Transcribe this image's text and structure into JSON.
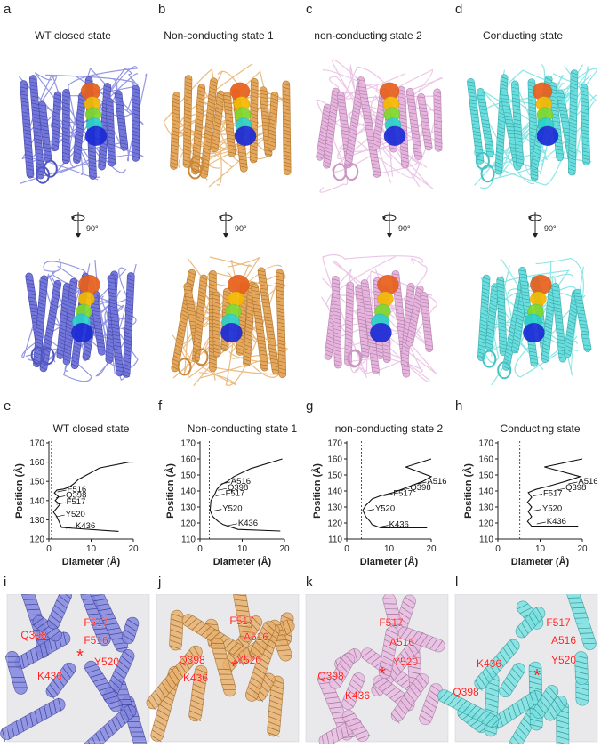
{
  "panel_letters": [
    "a",
    "b",
    "c",
    "d",
    "e",
    "f",
    "g",
    "h",
    "i",
    "j",
    "k",
    "l"
  ],
  "structure_titles": [
    "WT closed state",
    "Non-conducting state 1",
    "non-conducting state 2",
    "Conducting state"
  ],
  "rotation_label": "90°",
  "structure_colors": [
    "#5a5fd6",
    "#e0973f",
    "#e2a7d8",
    "#4fd8d8"
  ],
  "pore_colors": [
    "#e8601c",
    "#f5b800",
    "#7fd82c",
    "#2ad1c8",
    "#1a2bd6"
  ],
  "zoom_residues": [
    [
      "F517",
      "F516",
      "Q398",
      "Y520",
      "K436"
    ],
    [
      "F517",
      "A516",
      "Q398",
      "Y520",
      "K436"
    ],
    [
      "F517",
      "A516",
      "Q398",
      "Y520",
      "K436"
    ],
    [
      "F517",
      "A516",
      "K436",
      "Y520",
      "Q398"
    ]
  ],
  "zoom_star": "*",
  "chart_data": [
    {
      "type": "line",
      "title": "WT closed state",
      "xlabel": "Diameter (Å)",
      "ylabel": "Position (Å)",
      "xlim": [
        0,
        20
      ],
      "ylim": [
        120,
        170
      ],
      "xticks": [
        0,
        10,
        20
      ],
      "yticks": [
        120,
        130,
        140,
        150,
        160,
        170
      ],
      "dashed_x": 0.6,
      "series": [
        {
          "x": [
            16.5,
            3,
            2.2,
            1.8,
            1.1,
            2.6,
            1.5,
            2.3,
            1.3,
            1.9,
            3.5,
            4.8,
            6,
            7,
            12,
            19,
            20
          ],
          "y": [
            124,
            126,
            130,
            132,
            134,
            138,
            140,
            142,
            144,
            145.5,
            146,
            147,
            149,
            151,
            157,
            160,
            160
          ]
        }
      ],
      "annotations": [
        {
          "text": "F516",
          "x": 1.8,
          "y": 145
        },
        {
          "text": "Q398",
          "x": 1.5,
          "y": 142
        },
        {
          "text": "F517",
          "x": 1.6,
          "y": 138.5
        },
        {
          "text": "Y520",
          "x": 1.4,
          "y": 132
        },
        {
          "text": "K436",
          "x": 3.8,
          "y": 126
        }
      ]
    },
    {
      "type": "line",
      "title": "Non-conducting state 1",
      "xlabel": "Diameter (Å)",
      "ylabel": "Position (Å)",
      "xlim": [
        0,
        20
      ],
      "ylim": [
        110,
        170
      ],
      "xticks": [
        0,
        10,
        20
      ],
      "yticks": [
        110,
        120,
        130,
        140,
        150,
        160,
        170
      ],
      "dashed_x": 2.2,
      "series": [
        {
          "x": [
            19,
            9,
            5.5,
            4.3,
            3,
            2.4,
            2.6,
            3.5,
            4,
            5,
            6.5,
            8,
            12,
            19.5
          ],
          "y": [
            115,
            116,
            119,
            121,
            124,
            128,
            134,
            138,
            141,
            144,
            146,
            149,
            154,
            160
          ]
        }
      ],
      "annotations": [
        {
          "text": "A516",
          "x": 4.8,
          "y": 145
        },
        {
          "text": "Q398",
          "x": 4.0,
          "y": 141
        },
        {
          "text": "F517",
          "x": 3.5,
          "y": 137.5
        },
        {
          "text": "Y520",
          "x": 2.8,
          "y": 128
        },
        {
          "text": "K436",
          "x": 6.5,
          "y": 119
        }
      ]
    },
    {
      "type": "line",
      "title": "non-conducting state 2",
      "xlabel": "Diameter (Å)",
      "ylabel": "Position (Å)",
      "xlim": [
        0,
        20
      ],
      "ylim": [
        110,
        170
      ],
      "xticks": [
        0,
        10,
        20
      ],
      "yticks": [
        110,
        120,
        130,
        140,
        150,
        160,
        170
      ],
      "dashed_x": 3.5,
      "series": [
        {
          "x": [
            19,
            8,
            6,
            5.5,
            4.5,
            3.8,
            4.5,
            6,
            8,
            11,
            14,
            18,
            20,
            14,
            20
          ],
          "y": [
            117,
            117,
            119,
            121,
            124,
            128,
            131,
            135,
            137,
            139,
            142,
            146,
            149,
            155,
            160
          ]
        }
      ],
      "annotations": [
        {
          "text": "A516",
          "x": 16.5,
          "y": 145
        },
        {
          "text": "Q398",
          "x": 12.5,
          "y": 141
        },
        {
          "text": "F517",
          "x": 8.5,
          "y": 137.5
        },
        {
          "text": "Y520",
          "x": 4.2,
          "y": 128
        },
        {
          "text": "K436",
          "x": 7.5,
          "y": 118
        }
      ]
    },
    {
      "type": "line",
      "title": "Conducting state",
      "xlabel": "Diameter (Å)",
      "ylabel": "Position (Å)",
      "xlim": [
        0,
        20
      ],
      "ylim": [
        110,
        170
      ],
      "xticks": [
        0,
        10,
        20
      ],
      "yticks": [
        110,
        120,
        130,
        140,
        150,
        160,
        170
      ],
      "dashed_x": 5.2,
      "series": [
        {
          "x": [
            19,
            8,
            7,
            8,
            7.2,
            8,
            7,
            8,
            7.2,
            9,
            12,
            16,
            19.5,
            11,
            20
          ],
          "y": [
            118,
            118,
            121,
            124,
            127,
            130,
            133,
            136,
            139,
            141,
            143,
            146,
            149,
            155,
            160
          ]
        }
      ],
      "annotations": [
        {
          "text": "A516",
          "x": 16.5,
          "y": 145
        },
        {
          "text": "Q398",
          "x": 13.5,
          "y": 141
        },
        {
          "text": "F517",
          "x": 8.2,
          "y": 137.5
        },
        {
          "text": "Y520",
          "x": 8.0,
          "y": 128
        },
        {
          "text": "K436",
          "x": 9.0,
          "y": 120
        }
      ]
    }
  ]
}
